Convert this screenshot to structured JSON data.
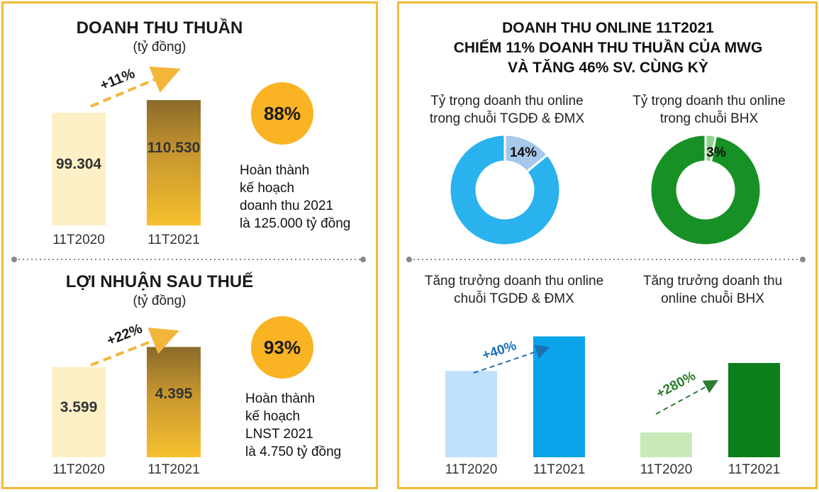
{
  "left": {
    "revenue": {
      "title": "DOANH THU THUẦN",
      "unit": "(tỷ đồng)",
      "growth": "+11%",
      "badge": "88%",
      "note": "Hoàn thành\nkế hoạch\ndoanh thu 2021\nlà 125.000 tỷ đồng"
    },
    "profit": {
      "title": "LỢI NHUẬN SAU THUẾ",
      "unit": "(tỷ đồng)",
      "growth": "+22%",
      "badge": "93%",
      "note": "Hoàn thành\nkế hoạch\nLNST 2021\nlà 4.750 tỷ đồng"
    }
  },
  "right": {
    "title": "DOANH THU ONLINE 11T2021\nCHIẾM 11% DOANH THU THUẦN CỦA MWG\nVÀ TĂNG 46% SV. CÙNG KỲ",
    "donut_tgdd_title": "Tỷ trọng doanh thu online\ntrong chuỗi TGDĐ & ĐMX",
    "donut_bhx_title": "Tỷ trọng doanh thu online\ntrong chuỗi BHX",
    "growth_tgdd_title": "Tăng trưởng doanh thu online\nchuỗi TGDĐ & ĐMX",
    "growth_bhx_title": "Tăng trưởng doanh thu\nonline chuỗi BHX"
  },
  "colors": {
    "border": "#f2bb3c",
    "badge": "#f9b323",
    "bar_prev_gold": "#fdf0c6",
    "bar_curr_gold_top": "#8a6a2a",
    "bar_curr_gold_bottom": "#f7c02f",
    "arrow_gold": "#f4b63a",
    "blue_light": "#bfe0fa",
    "blue": "#0ba3ea",
    "blue_arrow": "#1f6fb5",
    "green_light": "#c8eab8",
    "green": "#0b7f1c",
    "green_arrow": "#2e7d32",
    "donut_blue": "#2ab2ee",
    "donut_blue_light": "#a6c8ea",
    "donut_green": "#179125",
    "donut_green_light": "#8fd48a"
  },
  "chart_data": [
    {
      "type": "bar",
      "id": "revenue",
      "title": "DOANH THU THUẦN",
      "categories": [
        "11T2020",
        "11T2021"
      ],
      "values": [
        99.304,
        110.53
      ],
      "value_labels": [
        "99.304",
        "110.530"
      ],
      "ylim": [
        0,
        125
      ]
    },
    {
      "type": "bar",
      "id": "profit",
      "title": "LỢI NHUẬN SAU THUẾ",
      "categories": [
        "11T2020",
        "11T2021"
      ],
      "values": [
        3.599,
        4.395
      ],
      "value_labels": [
        "3.599",
        "4.395"
      ],
      "ylim": [
        0,
        5
      ]
    },
    {
      "type": "pie",
      "id": "donut-tgdd",
      "title": "Tỷ trọng doanh thu online\ntrong chuỗi TGDĐ & ĐMX",
      "values": [
        14,
        86
      ],
      "value_label": "14%"
    },
    {
      "type": "pie",
      "id": "donut-bhx",
      "title": "Tỷ trọng doanh thu online\ntrong chuỗi BHX",
      "values": [
        3,
        97
      ],
      "value_label": "3%"
    },
    {
      "type": "bar",
      "id": "growth-tgdd",
      "title": "Tăng trưởng doanh thu online\nchuỗi TGDĐ & ĐMX",
      "categories": [
        "11T2020",
        "11T2021"
      ],
      "values": [
        100,
        140
      ],
      "growth_label": "+40%",
      "ylim": [
        0,
        170
      ]
    },
    {
      "type": "bar",
      "id": "growth-bhx",
      "title": "Tăng trưởng doanh thu\nonline chuỗi BHX",
      "categories": [
        "11T2020",
        "11T2021"
      ],
      "values": [
        100,
        380
      ],
      "growth_label": "+280%",
      "ylim": [
        0,
        380
      ]
    }
  ]
}
